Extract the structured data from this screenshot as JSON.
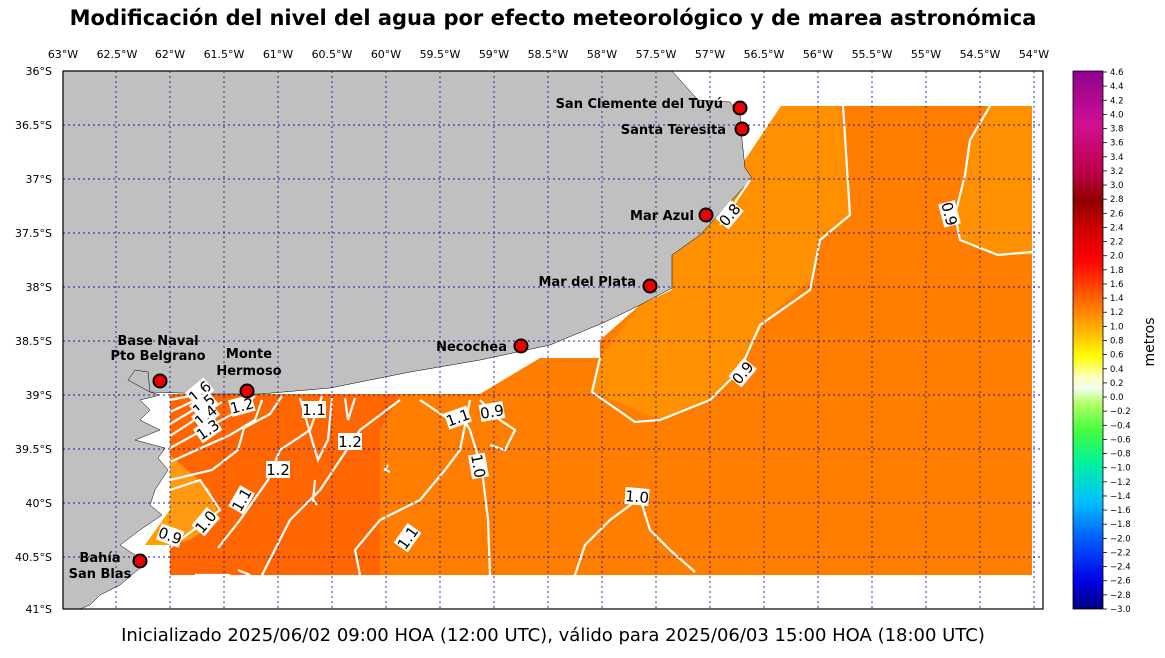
{
  "title": "Modificación del nivel del agua por efecto meteorológico y de marea astronómica",
  "footer": "Inicializado 2025/06/02 09:00 HOA (12:00 UTC), válido para 2025/06/03 15:00 HOA (18:00 UTC)",
  "map": {
    "lon_labels": [
      "63°W",
      "62.5°W",
      "62°W",
      "61.5°W",
      "61°W",
      "60.5°W",
      "60°W",
      "59.5°W",
      "59°W",
      "58.5°W",
      "58°W",
      "57.5°W",
      "57°W",
      "56.5°W",
      "56°W",
      "55.5°W",
      "55°W",
      "54.5°W",
      "54°W"
    ],
    "lat_labels": [
      "36°S",
      "36.5°S",
      "37°S",
      "37.5°S",
      "38°S",
      "38.5°S",
      "39°S",
      "39.5°S",
      "40°S",
      "40.5°S",
      "41°S"
    ],
    "stations": [
      {
        "name": "San Clemente del Tuyú",
        "lon": -56.7,
        "lat": -36.35
      },
      {
        "name": "Santa Teresita",
        "lon": -56.68,
        "lat": -36.55
      },
      {
        "name": "Mar Azul",
        "lon": -57.03,
        "lat": -37.35
      },
      {
        "name": "Mar del Plata",
        "lon": -57.55,
        "lat": -38.02
      },
      {
        "name": "Necochea",
        "lon": -58.73,
        "lat": -38.57
      },
      {
        "name": "Base Naval Pto Belgrano",
        "label_lines": [
          "Base Naval",
          "Pto Belgrano"
        ],
        "lon": -62.1,
        "lat": -38.88
      },
      {
        "name": "Monte Hermoso",
        "label_lines": [
          "Monte",
          "Hermoso"
        ],
        "lon": -61.28,
        "lat": -38.98
      },
      {
        "name": "Bahía San Blas",
        "label_lines": [
          "Bahía",
          "San Blas"
        ],
        "lon": -62.27,
        "lat": -40.55
      }
    ],
    "contour_labels": [
      "1.6",
      "1.5",
      "1.4",
      "1.3",
      "1.2",
      "1.1",
      "1.2",
      "1.2",
      "1.1",
      "1.0",
      "0.9",
      "1.1",
      "1.0",
      "0.9",
      "1.1",
      "1.0",
      "0.8",
      "0.9",
      "0.9"
    ],
    "colors": {
      "land": "#c0c0c0",
      "field_dark": "#ff6a00",
      "field_mid": "#ff7e00",
      "field_light": "#ff9100",
      "contour": "#ffffff",
      "grid": "#1a1a9e"
    }
  },
  "colorbar": {
    "label": "metros",
    "tick_labels": [
      "4.6",
      "4.4",
      "4.2",
      "4.0",
      "3.8",
      "3.6",
      "3.4",
      "3.2",
      "3.0",
      "2.8",
      "2.6",
      "2.4",
      "2.2",
      "2.0",
      "1.8",
      "1.6",
      "1.4",
      "1.2",
      "1.0",
      "0.8",
      "0.6",
      "0.4",
      "0.2",
      "0.0",
      "−0.2",
      "−0.4",
      "−0.6",
      "−0.8",
      "−1.0",
      "−1.2",
      "−1.4",
      "−1.6",
      "−1.8",
      "−2.0",
      "−2.2",
      "−2.4",
      "−2.6",
      "−2.8",
      "−3.0"
    ]
  }
}
